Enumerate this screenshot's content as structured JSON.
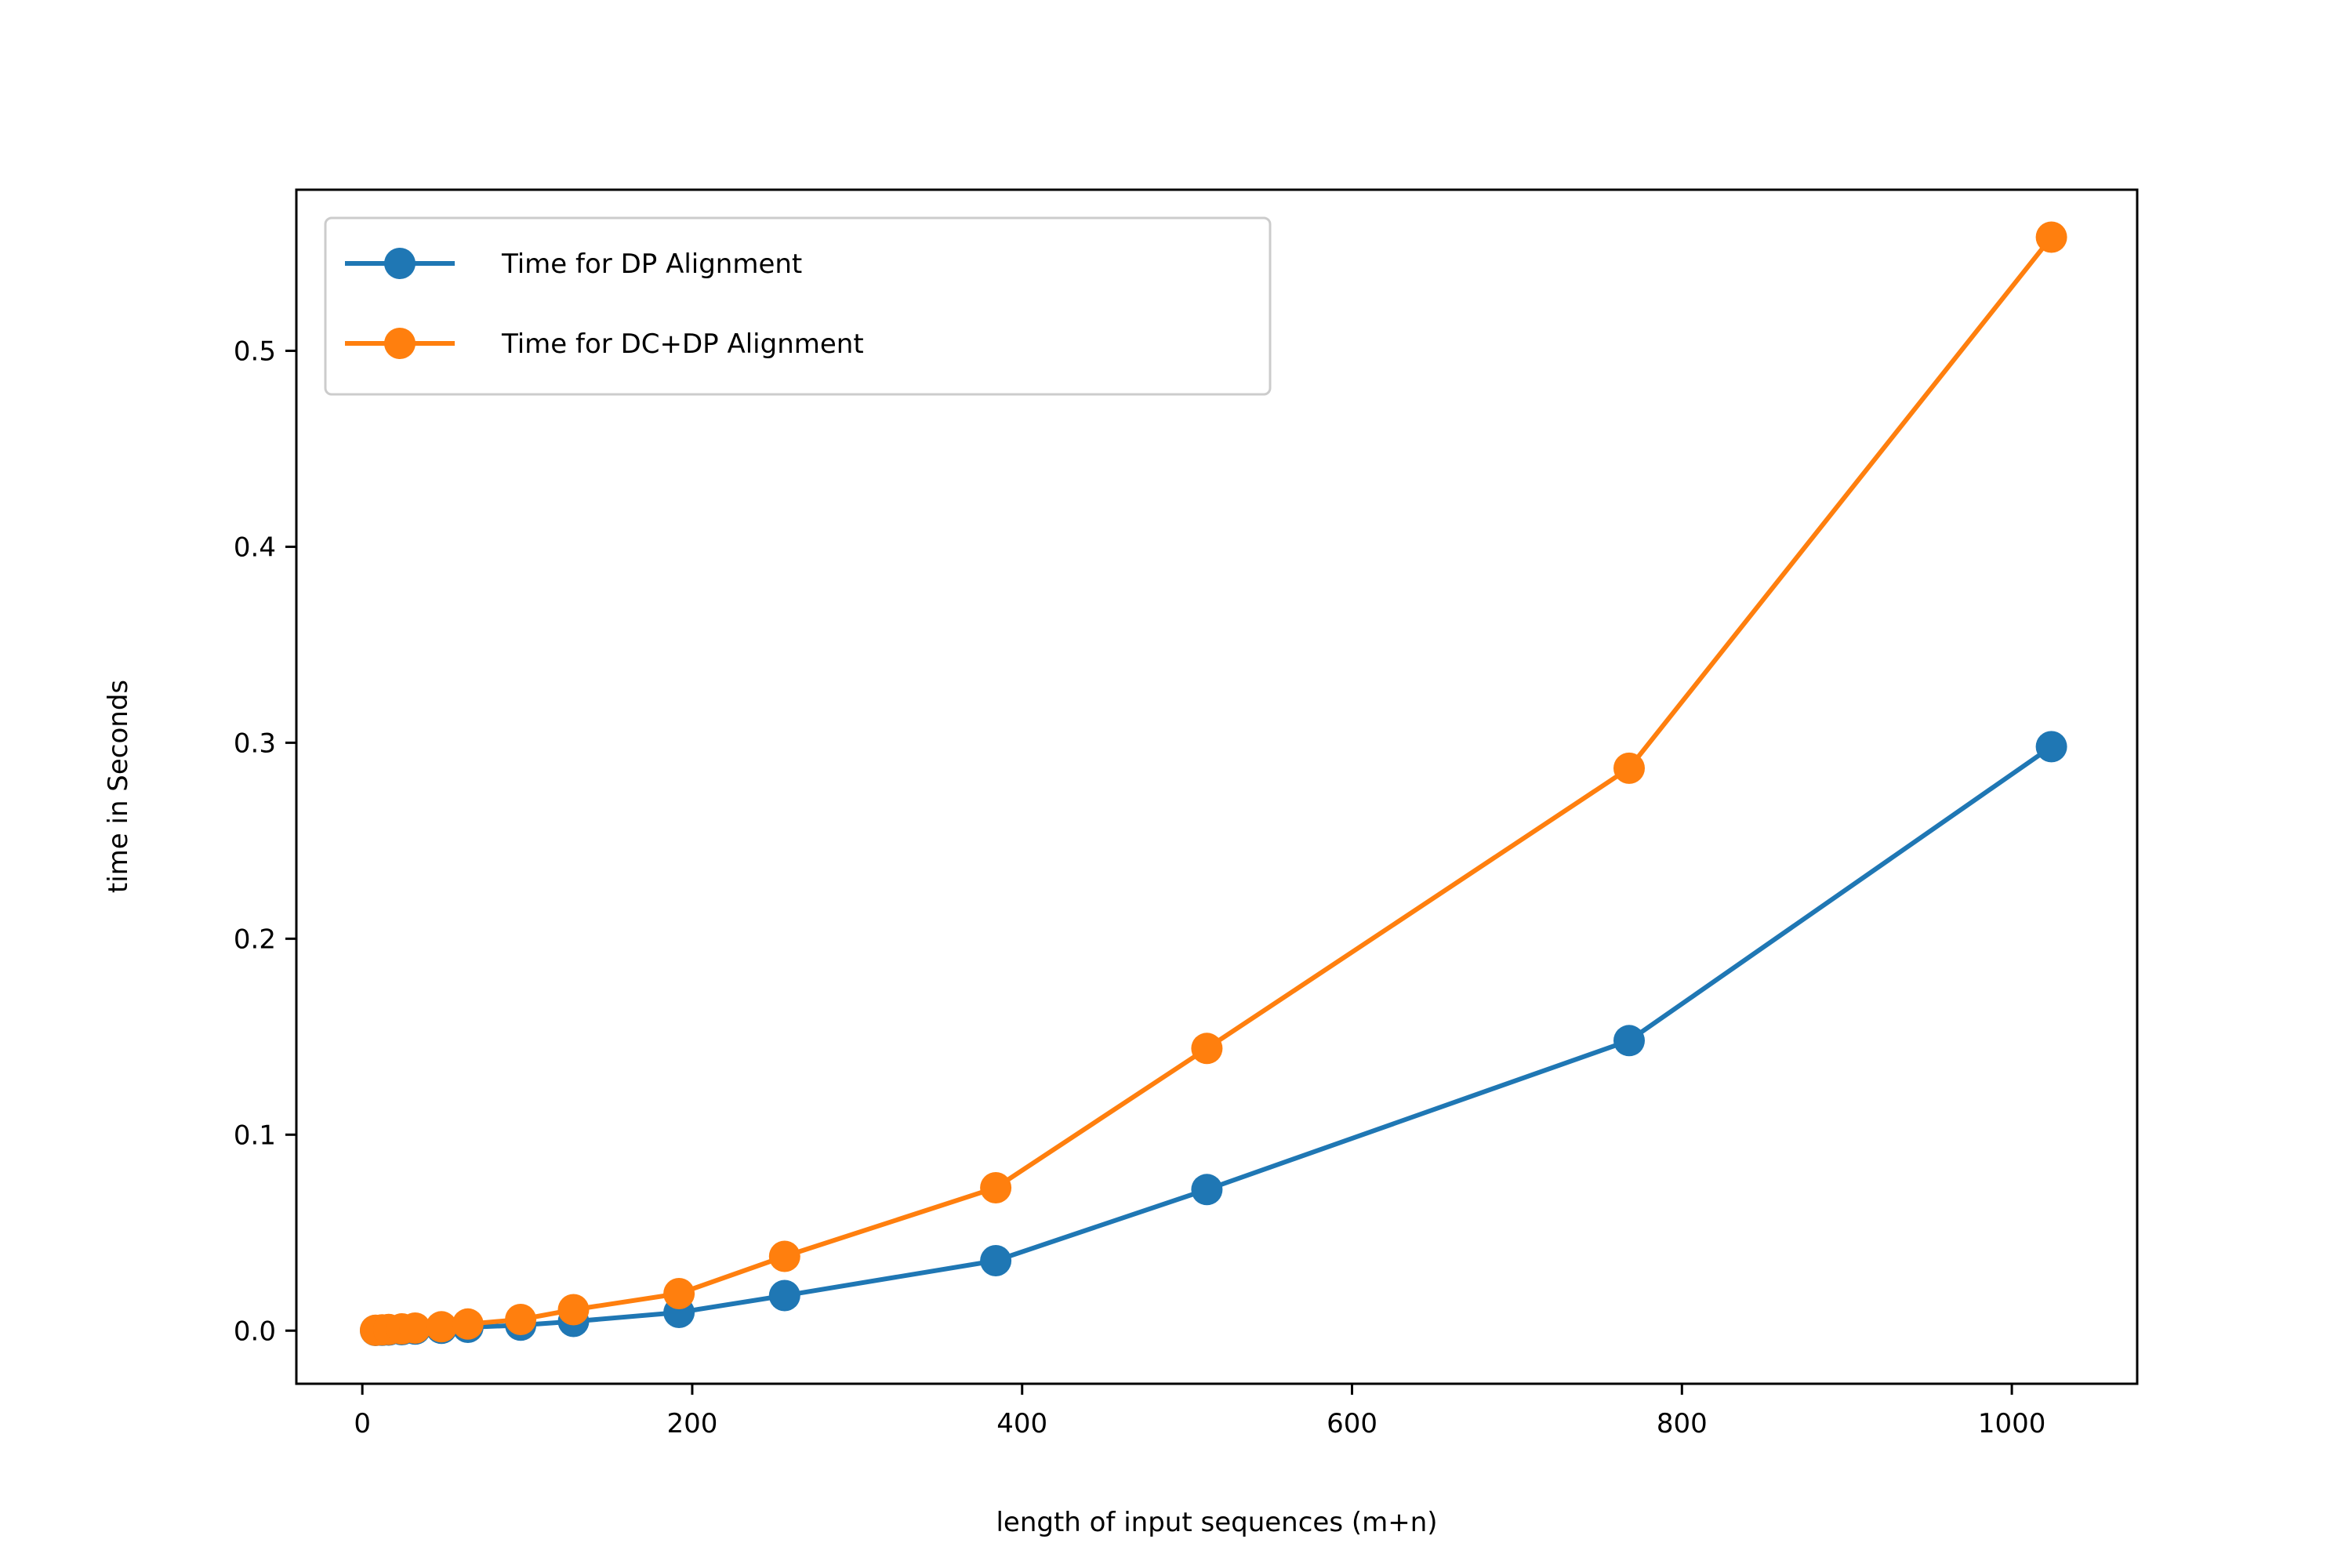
{
  "chart_data": {
    "type": "line",
    "title": "",
    "xlabel": "length of input sequences (m+n)",
    "ylabel": "time in Seconds",
    "xlim": [
      -40,
      1076
    ],
    "ylim": [
      -0.0271,
      0.5822
    ],
    "xticks": [
      0,
      200,
      400,
      600,
      800,
      1000
    ],
    "xtick_labels": [
      "0",
      "200",
      "400",
      "600",
      "800",
      "1000"
    ],
    "yticks": [
      0.0,
      0.1,
      0.2,
      0.3,
      0.4,
      0.5
    ],
    "ytick_labels": [
      "0.0",
      "0.1",
      "0.2",
      "0.3",
      "0.4",
      "0.5"
    ],
    "grid": false,
    "legend_position": "upper-left",
    "x": [
      8,
      12,
      16,
      24,
      32,
      48,
      64,
      96,
      128,
      192,
      256,
      384,
      512,
      768,
      1024
    ],
    "series": [
      {
        "name": "Time for DP Alignment",
        "color": "#1f77b4",
        "values": [
          0.0001,
          0.0002,
          0.0003,
          0.0005,
          0.0008,
          0.0012,
          0.0017,
          0.0028,
          0.0047,
          0.0093,
          0.0179,
          0.0357,
          0.072,
          0.148,
          0.298
        ]
      },
      {
        "name": "Time for DC+DP Alignment",
        "color": "#ff7f0e",
        "values": [
          0.0002,
          0.0004,
          0.0006,
          0.0009,
          0.0013,
          0.002,
          0.0034,
          0.0057,
          0.0107,
          0.0189,
          0.0379,
          0.0729,
          0.144,
          0.287,
          0.558
        ]
      }
    ]
  }
}
